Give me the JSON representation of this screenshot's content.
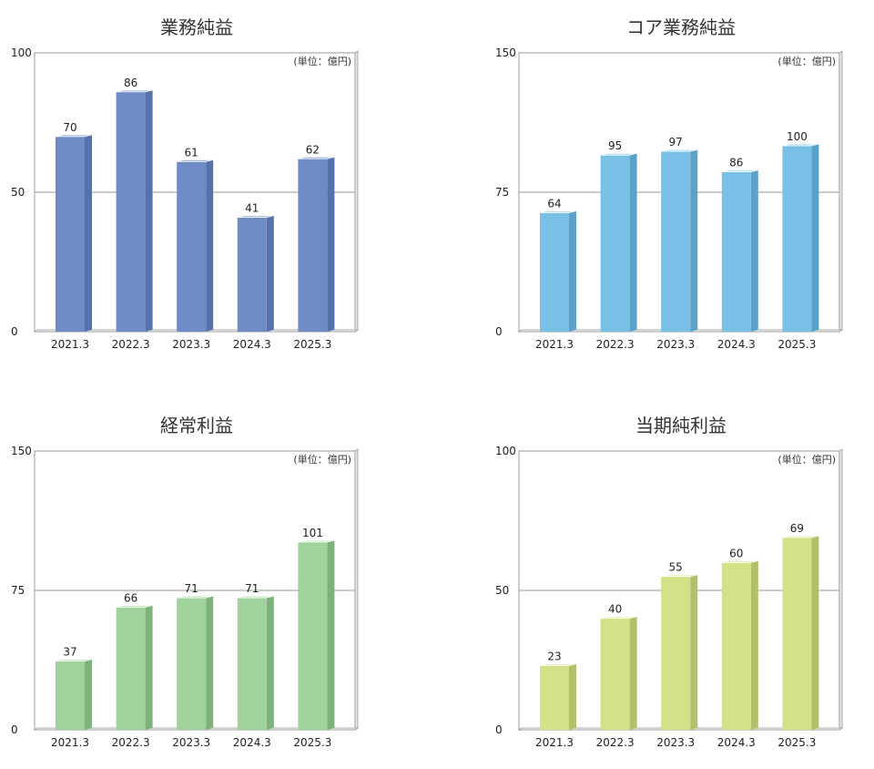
{
  "chart_data": [
    {
      "type": "bar",
      "title": "業務純益",
      "unit_note": "(単位：億円)",
      "categories": [
        "2021.3",
        "2022.3",
        "2023.3",
        "2024.3",
        "2025.3"
      ],
      "values": [
        70,
        86,
        61,
        41,
        62
      ],
      "ylim": [
        0,
        100
      ],
      "yticks": [
        0,
        50,
        100
      ],
      "colors": {
        "front": "#6f8bc5",
        "side": "#5573aa",
        "top": "#a7b8de"
      }
    },
    {
      "type": "bar",
      "title": "コア業務純益",
      "unit_note": "(単位：億円)",
      "categories": [
        "2021.3",
        "2022.3",
        "2023.3",
        "2024.3",
        "2025.3"
      ],
      "values": [
        64,
        95,
        97,
        86,
        100
      ],
      "ylim": [
        0,
        150
      ],
      "yticks": [
        0,
        75,
        150
      ],
      "colors": {
        "front": "#78c0e6",
        "side": "#5aa2c9",
        "top": "#b5ddf2"
      }
    },
    {
      "type": "bar",
      "title": "経常利益",
      "unit_note": "(単位：億円)",
      "categories": [
        "2021.3",
        "2022.3",
        "2023.3",
        "2024.3",
        "2025.3"
      ],
      "values": [
        37,
        66,
        71,
        71,
        101
      ],
      "ylim": [
        0,
        150
      ],
      "yticks": [
        0,
        75,
        150
      ],
      "colors": {
        "front": "#9fd39b",
        "side": "#7db27b",
        "top": "#cbe8c8"
      }
    },
    {
      "type": "bar",
      "title": "当期純利益",
      "unit_note": "(単位：億円)",
      "categories": [
        "2021.3",
        "2022.3",
        "2023.3",
        "2024.3",
        "2025.3"
      ],
      "values": [
        23,
        40,
        55,
        60,
        69
      ],
      "ylim": [
        0,
        100
      ],
      "yticks": [
        0,
        50,
        100
      ],
      "colors": {
        "front": "#d5e187",
        "side": "#b3bf69",
        "top": "#e9f0bd"
      }
    }
  ]
}
